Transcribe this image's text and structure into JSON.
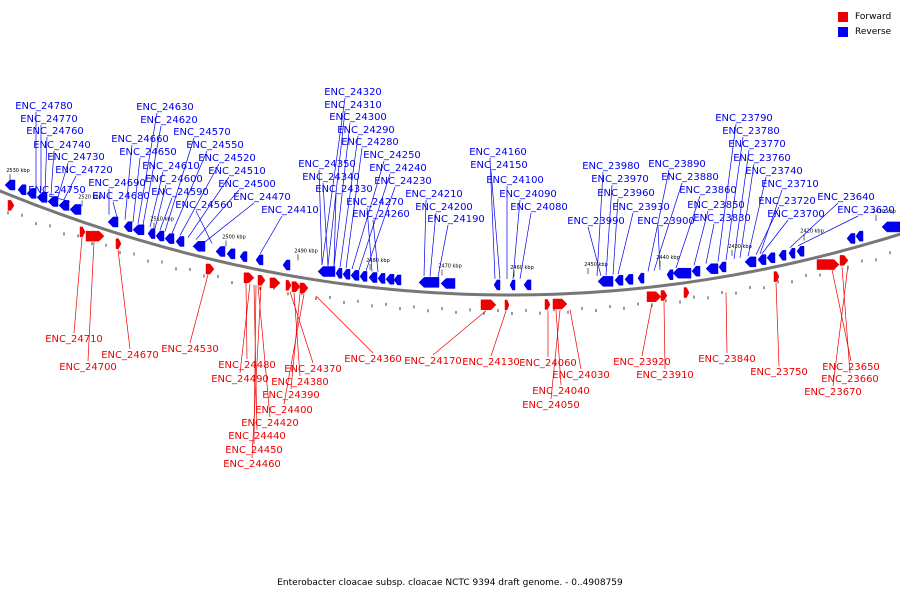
{
  "legend": {
    "forward": {
      "label": "Forward",
      "color": "#ee0000"
    },
    "reverse": {
      "label": "Reverse",
      "color": "#0000ee"
    }
  },
  "caption": "Enterobacter cloacae subsp. cloacae NCTC 9394 draft genome. - 0..4908759",
  "chart_data": {
    "type": "genome-map",
    "backbone_color": "#777777",
    "ticks": [
      "2530 kbp",
      "2520 kbp",
      "2510 kbp",
      "2500 kbp",
      "2490 kbp",
      "2480 kbp",
      "2470 kbp",
      "2460 kbp",
      "2450 kbp",
      "2440 kbp",
      "2430 kbp",
      "2420 kbp",
      "2410 kbp"
    ],
    "reverse_labels": [
      "ENC_24780",
      "ENC_24770",
      "ENC_24760",
      "ENC_24740",
      "ENC_24730",
      "ENC_24720",
      "ENC_24750",
      "ENC_24690",
      "ENC_24680",
      "ENC_24660",
      "ENC_24650",
      "ENC_24630",
      "ENC_24620",
      "ENC_24610",
      "ENC_24600",
      "ENC_24590",
      "ENC_24570",
      "ENC_24550",
      "ENC_24520",
      "ENC_24510",
      "ENC_24500",
      "ENC_24470",
      "ENC_24560",
      "ENC_24410",
      "ENC_24320",
      "ENC_24310",
      "ENC_24300",
      "ENC_24290",
      "ENC_24280",
      "ENC_24350",
      "ENC_24340",
      "ENC_24330",
      "ENC_24250",
      "ENC_24240",
      "ENC_24230",
      "ENC_24270",
      "ENC_24260",
      "ENC_24210",
      "ENC_24200",
      "ENC_24190",
      "ENC_24160",
      "ENC_24150",
      "ENC_24100",
      "ENC_24090",
      "ENC_24080",
      "ENC_23980",
      "ENC_23970",
      "ENC_23960",
      "ENC_23990",
      "ENC_23930",
      "ENC_23890",
      "ENC_23880",
      "ENC_23900",
      "ENC_23860",
      "ENC_23850",
      "ENC_23830",
      "ENC_23790",
      "ENC_23780",
      "ENC_23770",
      "ENC_23760",
      "ENC_23740",
      "ENC_23710",
      "ENC_23720",
      "ENC_23700",
      "ENC_23640",
      "ENC_23620"
    ],
    "forward_labels": [
      "ENC_24710",
      "ENC_24700",
      "ENC_24670",
      "ENC_24530",
      "ENC_24480",
      "ENC_24490",
      "ENC_24370",
      "ENC_24380",
      "ENC_24390",
      "ENC_24400",
      "ENC_24420",
      "ENC_24440",
      "ENC_24450",
      "ENC_24460",
      "ENC_24360",
      "ENC_24170",
      "ENC_24130",
      "ENC_24060",
      "ENC_24030",
      "ENC_24040",
      "ENC_24050",
      "ENC_23920",
      "ENC_23910",
      "ENC_23840",
      "ENC_23750",
      "ENC_23650",
      "ENC_23660",
      "ENC_23670"
    ]
  }
}
